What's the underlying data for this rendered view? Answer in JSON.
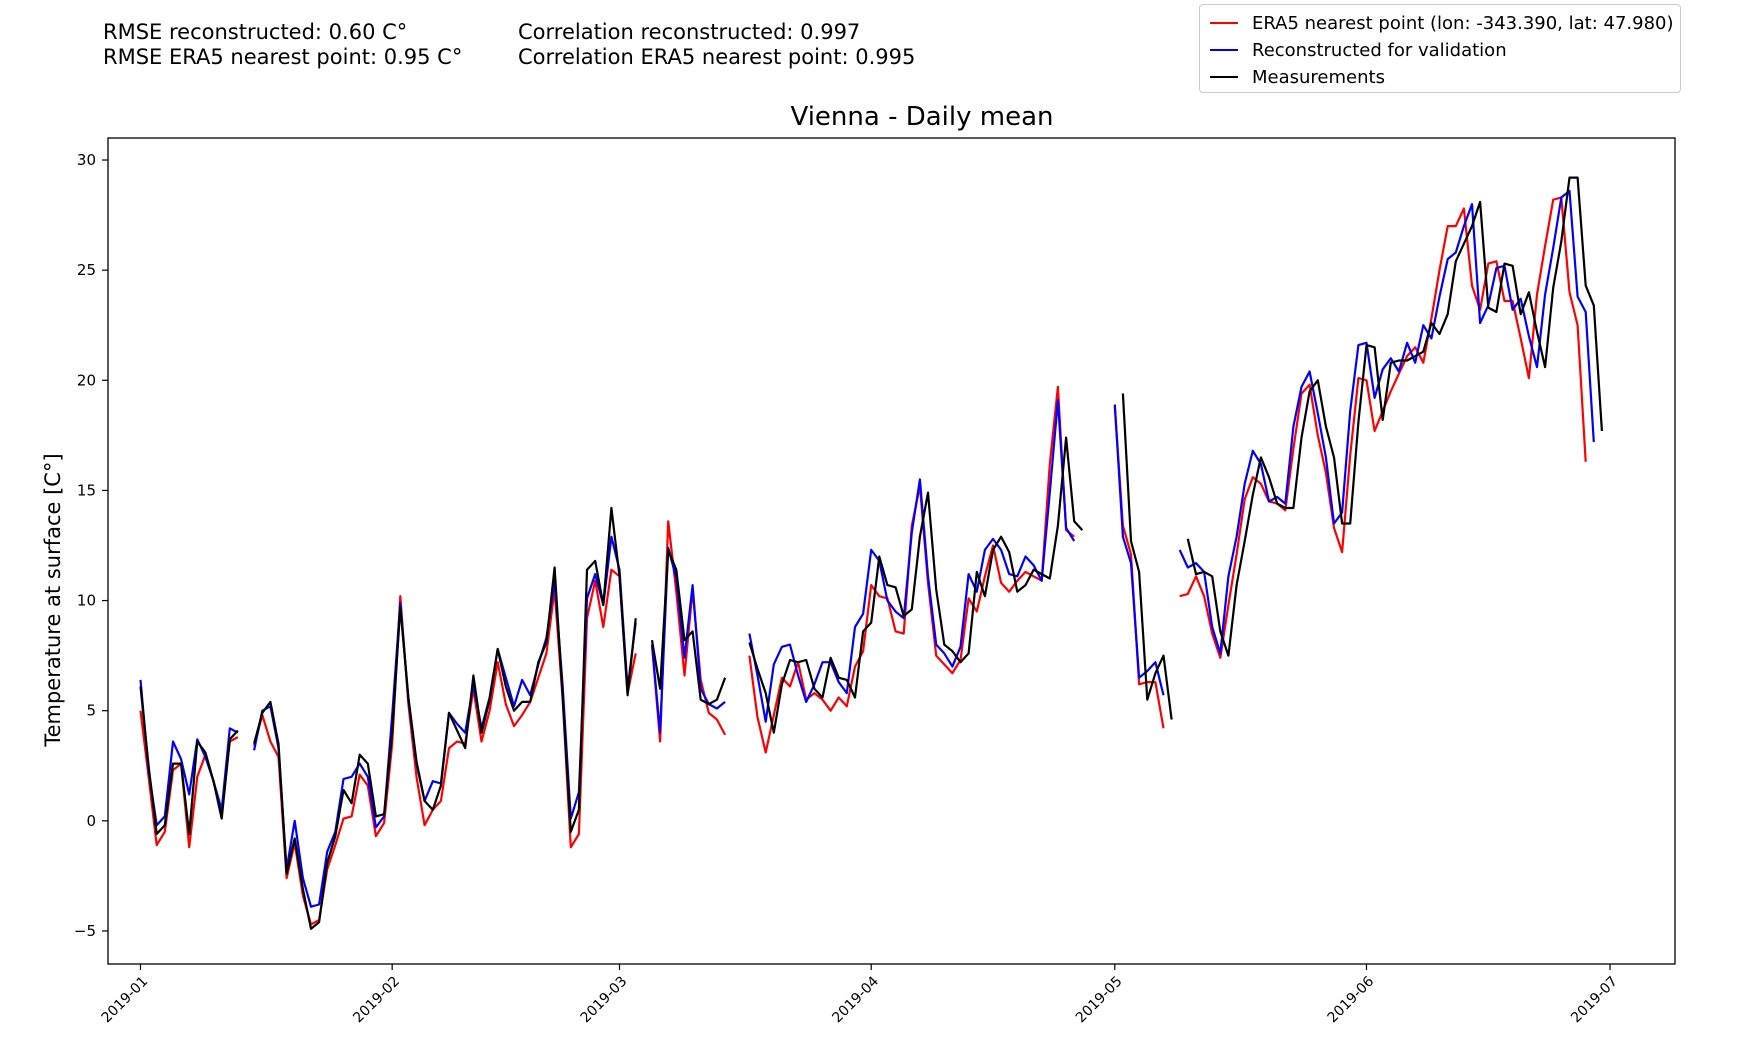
{
  "stats": {
    "rmse_reconstructed": "RMSE reconstructed: 0.60 C°",
    "rmse_era5": "RMSE ERA5 nearest point: 0.95 C°",
    "corr_reconstructed": "Correlation reconstructed: 0.997",
    "corr_era5": "Correlation ERA5 nearest point: 0.995"
  },
  "legend": {
    "placement": "top-right",
    "items": [
      {
        "label": "ERA5 nearest point (lon: -343.390, lat: 47.980)",
        "color": "#ff0000"
      },
      {
        "label": "Reconstructed for validation",
        "color": "#0000ff"
      },
      {
        "label": "Measurements",
        "color": "#000000"
      }
    ]
  },
  "chart_data": {
    "type": "line",
    "title": "Vienna - Daily mean",
    "xlabel": "",
    "ylabel": "Temperature at surface [C°]",
    "x_start": "2019-01-01",
    "x_end": "2019-06-30",
    "xlim": [
      "2018-12-28",
      "2019-07-09"
    ],
    "ylim": [
      -6.5,
      31
    ],
    "yticks": [
      -5,
      0,
      5,
      10,
      15,
      20,
      25,
      30
    ],
    "ytick_labels": [
      "−5",
      "0",
      "5",
      "10",
      "15",
      "20",
      "25",
      "30"
    ],
    "xticks": [
      "2019-01-01",
      "2019-02-01",
      "2019-03-01",
      "2019-04-01",
      "2019-05-01",
      "2019-06-01",
      "2019-07-01"
    ],
    "xtick_labels": [
      "2019-01",
      "2019-02",
      "2019-03",
      "2019-04",
      "2019-05",
      "2019-06",
      "2019-07"
    ],
    "grid": false,
    "series": [
      {
        "name": "ERA5 nearest point (lon: -343.390, lat: 47.980)",
        "color": "#ff0000",
        "values": [
          5.0,
          2.0,
          -1.1,
          -0.5,
          2.3,
          2.6,
          -1.2,
          2.0,
          3.0,
          1.8,
          0.3,
          3.6,
          3.8,
          null,
          3.4,
          4.8,
          3.6,
          2.9,
          -2.6,
          -1.0,
          -3.4,
          -4.7,
          -4.5,
          -2.2,
          -1.1,
          0.1,
          0.2,
          2.1,
          1.6,
          -0.7,
          -0.1,
          3.5,
          10.2,
          5.3,
          2.0,
          -0.2,
          0.5,
          0.9,
          3.3,
          3.6,
          3.5,
          6.0,
          3.6,
          5.0,
          7.2,
          5.3,
          4.3,
          4.8,
          5.4,
          6.5,
          7.6,
          10.5,
          5.5,
          -1.2,
          -0.6,
          9.2,
          10.9,
          8.8,
          11.4,
          11.1,
          5.8,
          7.6,
          null,
          8.0,
          3.6,
          13.6,
          10.4,
          6.6,
          10.5,
          6.4,
          4.9,
          4.6,
          3.9,
          null,
          null,
          7.5,
          4.7,
          3.1,
          4.8,
          6.5,
          6.1,
          7.2,
          5.5,
          5.8,
          5.5,
          5.0,
          5.6,
          5.2,
          7.0,
          7.7,
          10.7,
          10.2,
          10.1,
          8.6,
          8.5,
          13.4,
          15.2,
          10.8,
          7.5,
          7.1,
          6.7,
          7.3,
          10.1,
          9.5,
          11.1,
          12.5,
          10.8,
          10.4,
          10.9,
          11.3,
          11.1,
          10.9,
          16.2,
          19.7,
          13.2,
          12.9,
          null,
          null,
          null,
          null,
          18.8,
          13.4,
          12.1,
          6.2,
          6.3,
          6.3,
          4.2,
          null,
          10.2,
          10.3,
          11.1,
          10.2,
          8.5,
          7.4,
          9.8,
          12.1,
          14.6,
          15.6,
          15.3,
          14.5,
          14.4,
          14.1,
          16.9,
          19.4,
          19.8,
          17.5,
          15.8,
          13.3,
          12.2,
          16.6,
          20.1,
          20.0,
          17.7,
          18.6,
          19.5,
          20.3,
          21.1,
          21.5,
          20.8,
          22.8,
          25.0,
          27.0,
          27.0,
          27.8,
          24.3,
          23.2,
          25.3,
          25.4,
          23.6,
          23.6,
          21.9,
          20.1,
          23.9,
          26.1,
          28.2,
          28.3,
          24.0,
          22.5,
          16.3
        ]
      },
      {
        "name": "Reconstructed for validation",
        "color": "#0000ff",
        "values": [
          6.4,
          2.3,
          -0.2,
          0.2,
          3.6,
          2.8,
          1.2,
          3.7,
          2.9,
          1.8,
          0.5,
          4.2,
          4.0,
          null,
          3.2,
          5.0,
          5.2,
          3.3,
          -2.2,
          0.0,
          -2.6,
          -3.9,
          -3.8,
          -1.4,
          -0.5,
          1.9,
          2.0,
          2.6,
          2.0,
          -0.3,
          0.2,
          4.8,
          9.9,
          5.5,
          2.6,
          0.9,
          1.8,
          1.7,
          4.9,
          4.4,
          4.0,
          6.2,
          4.2,
          5.6,
          7.8,
          6.5,
          5.2,
          6.4,
          5.7,
          7.1,
          8.3,
          10.9,
          6.1,
          0.1,
          1.3,
          10.1,
          11.2,
          9.8,
          12.9,
          11.4,
          6.0,
          9.0,
          null,
          8.0,
          4.0,
          12.4,
          11.0,
          7.4,
          10.7,
          6.0,
          5.3,
          5.1,
          5.4,
          null,
          null,
          8.5,
          6.6,
          4.5,
          7.1,
          7.9,
          8.0,
          6.6,
          5.4,
          6.2,
          7.2,
          7.2,
          6.3,
          5.8,
          8.8,
          9.4,
          12.3,
          11.8,
          10.0,
          9.5,
          9.2,
          13.1,
          15.5,
          11.1,
          8.0,
          7.6,
          7.0,
          7.9,
          11.2,
          10.4,
          12.3,
          12.8,
          12.3,
          11.2,
          11.1,
          12.0,
          11.6,
          10.9,
          14.9,
          19.1,
          13.3,
          12.7,
          null,
          null,
          null,
          null,
          18.9,
          12.9,
          11.7,
          6.5,
          6.8,
          7.2,
          5.7,
          null,
          12.3,
          11.5,
          11.7,
          11.3,
          8.8,
          7.6,
          11.1,
          12.9,
          15.3,
          16.8,
          16.2,
          14.5,
          14.7,
          14.4,
          17.9,
          19.7,
          20.4,
          18.5,
          16.5,
          13.5,
          14.0,
          18.6,
          21.6,
          21.7,
          19.2,
          20.5,
          21.0,
          20.4,
          21.7,
          20.8,
          22.5,
          21.9,
          23.8,
          25.5,
          25.8,
          27.0,
          28.0,
          22.6,
          23.4,
          25.1,
          25.2,
          23.2,
          23.7,
          22.0,
          20.6,
          23.9,
          26.0,
          28.3,
          28.6,
          23.8,
          23.1,
          17.2
        ]
      },
      {
        "name": "Measurements",
        "color": "#000000",
        "values": [
          6.1,
          2.5,
          -0.6,
          -0.2,
          2.6,
          2.6,
          -0.6,
          3.6,
          3.1,
          1.8,
          0.1,
          3.7,
          4.1,
          null,
          3.5,
          4.9,
          5.4,
          3.5,
          -2.4,
          -0.8,
          -3.1,
          -4.9,
          -4.6,
          -1.9,
          -0.7,
          1.4,
          0.8,
          3.0,
          2.6,
          0.2,
          0.3,
          4.0,
          9.7,
          5.6,
          2.7,
          0.9,
          0.5,
          1.6,
          4.9,
          4.1,
          3.3,
          6.6,
          4.0,
          5.5,
          7.8,
          6.1,
          5.0,
          5.4,
          5.4,
          7.2,
          8.1,
          11.5,
          5.6,
          -0.5,
          0.5,
          11.4,
          11.8,
          9.8,
          14.2,
          11.1,
          5.7,
          9.2,
          null,
          8.2,
          6.0,
          12.3,
          11.4,
          8.2,
          8.6,
          5.5,
          5.3,
          5.5,
          6.5,
          null,
          null,
          8.1,
          6.9,
          5.8,
          4.0,
          6.2,
          7.3,
          7.2,
          7.3,
          6.0,
          5.6,
          7.4,
          6.5,
          6.4,
          5.6,
          8.6,
          9.0,
          12.0,
          10.7,
          10.6,
          9.3,
          9.6,
          12.9,
          14.9,
          10.5,
          8.0,
          7.7,
          7.2,
          7.6,
          11.3,
          10.2,
          12.3,
          12.9,
          12.2,
          10.4,
          10.7,
          11.4,
          11.2,
          11.0,
          13.4,
          17.4,
          13.6,
          13.2,
          null,
          null,
          null,
          null,
          19.4,
          12.7,
          11.3,
          5.5,
          6.7,
          7.5,
          4.6,
          null,
          12.8,
          11.2,
          11.3,
          11.1,
          8.6,
          7.5,
          10.7,
          12.7,
          14.8,
          16.5,
          15.6,
          14.4,
          14.2,
          14.2,
          17.4,
          19.5,
          20.0,
          17.9,
          16.5,
          13.5,
          13.5,
          18.1,
          21.6,
          21.5,
          18.2,
          20.8,
          20.9,
          20.9,
          21.1,
          21.3,
          22.6,
          22.1,
          23.0,
          25.4,
          26.2,
          27.0,
          28.1,
          23.3,
          23.1,
          25.3,
          25.2,
          23.0,
          24.0,
          22.2,
          20.6,
          24.2,
          26.3,
          29.2,
          29.2,
          24.3,
          23.4,
          17.7
        ]
      }
    ]
  }
}
